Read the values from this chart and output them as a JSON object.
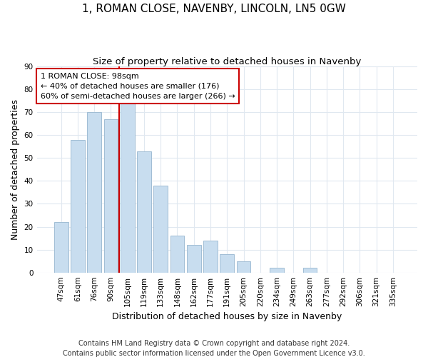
{
  "title": "1, ROMAN CLOSE, NAVENBY, LINCOLN, LN5 0GW",
  "subtitle": "Size of property relative to detached houses in Navenby",
  "xlabel": "Distribution of detached houses by size in Navenby",
  "ylabel": "Number of detached properties",
  "bar_labels": [
    "47sqm",
    "61sqm",
    "76sqm",
    "90sqm",
    "105sqm",
    "119sqm",
    "133sqm",
    "148sqm",
    "162sqm",
    "177sqm",
    "191sqm",
    "205sqm",
    "220sqm",
    "234sqm",
    "249sqm",
    "263sqm",
    "277sqm",
    "292sqm",
    "306sqm",
    "321sqm",
    "335sqm"
  ],
  "bar_values": [
    22,
    58,
    70,
    67,
    75,
    53,
    38,
    16,
    12,
    14,
    8,
    5,
    0,
    2,
    0,
    2,
    0,
    0,
    0,
    0,
    0
  ],
  "bar_color": "#c8ddef",
  "bar_edge_color": "#a0bdd4",
  "vline_x_index": 4,
  "vline_color": "#cc0000",
  "annotation_title": "1 ROMAN CLOSE: 98sqm",
  "annotation_line1": "← 40% of detached houses are smaller (176)",
  "annotation_line2": "60% of semi-detached houses are larger (266) →",
  "annotation_box_color": "#ffffff",
  "annotation_box_edge": "#cc0000",
  "ylim": [
    0,
    90
  ],
  "yticks": [
    0,
    10,
    20,
    30,
    40,
    50,
    60,
    70,
    80,
    90
  ],
  "footer_line1": "Contains HM Land Registry data © Crown copyright and database right 2024.",
  "footer_line2": "Contains public sector information licensed under the Open Government Licence v3.0.",
  "bg_color": "#ffffff",
  "plot_bg_color": "#ffffff",
  "grid_color": "#e0e8f0",
  "title_fontsize": 11,
  "subtitle_fontsize": 9.5,
  "axis_label_fontsize": 9,
  "tick_fontsize": 7.5,
  "annotation_fontsize": 8,
  "footer_fontsize": 7
}
